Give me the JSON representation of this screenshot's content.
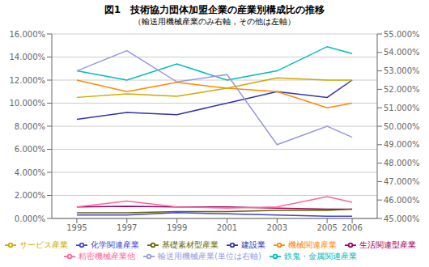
{
  "chart_data": {
    "type": "line",
    "title": "図1　技術協力団体加盟企業の産業別構成比の推移",
    "subtitle": "（輸送用機械産業のみ右軸，その他は左軸）",
    "x": [
      1995,
      1997,
      1999,
      2001,
      2003,
      2005,
      2006
    ],
    "xlim": [
      1994,
      2007
    ],
    "xticks": [
      1995,
      1997,
      1999,
      2001,
      2003,
      2005,
      2006
    ],
    "series": [
      {
        "name": "建設業",
        "color": "#3333AA",
        "values": [
          0.086,
          0.092,
          0.09,
          0.1,
          0.11,
          0.105,
          0.12
        ]
      },
      {
        "name": "生活関連型産業",
        "color": "#990066",
        "values": [
          0.01,
          0.0105,
          0.01,
          0.01,
          0.009,
          0.008,
          0.008
        ]
      },
      {
        "name": "基礎素材型産業",
        "color": "#666600",
        "values": [
          0.005,
          0.005,
          0.006,
          0.006,
          0.007,
          0.007,
          0.008
        ]
      },
      {
        "name": "化学関連産業",
        "color": "#4444CC",
        "values": [
          0.003,
          0.003,
          0.005,
          0.004,
          0.003,
          0.002,
          0.002
        ]
      },
      {
        "name": "鉄鬼・金属関連産業",
        "color": "#00BBBB",
        "values": [
          0.128,
          0.12,
          0.134,
          0.12,
          0.128,
          0.149,
          0.143
        ]
      },
      {
        "name": "機械関連産業",
        "color": "#FF8800",
        "values": [
          0.12,
          0.11,
          0.118,
          0.113,
          0.11,
          0.096,
          0.1
        ]
      },
      {
        "name": "精密機械産業他",
        "color": "#FF6699",
        "values": [
          0.01,
          0.015,
          0.01,
          0.009,
          0.01,
          0.019,
          0.014
        ]
      },
      {
        "name": "サービス産業",
        "color": "#CCAA00",
        "values": [
          0.105,
          0.108,
          0.106,
          0.113,
          0.122,
          0.12,
          0.12
        ]
      },
      {
        "name": "輸送用機械産業(単位は右軸)",
        "color": "#9999DD",
        "values": [
          0.53,
          0.541,
          0.524,
          0.528,
          0.49,
          0.5,
          0.494
        ],
        "axis": "y2"
      }
    ],
    "ylim": [
      0.0,
      0.16
    ],
    "yticks": [
      {
        "value": 0.0,
        "label": "0.000%"
      },
      {
        "value": 0.02,
        "label": "2.000%"
      },
      {
        "value": 0.04,
        "label": "4.000%"
      },
      {
        "value": 0.06,
        "label": "6.000%"
      },
      {
        "value": 0.08,
        "label": "8.000%"
      },
      {
        "value": 0.1,
        "label": "10.000%"
      },
      {
        "value": 0.12,
        "label": "12.000%"
      },
      {
        "value": 0.14,
        "label": "14.000%"
      },
      {
        "value": 0.16,
        "label": "16.000%"
      }
    ],
    "y2lim": [
      0.45,
      0.55
    ],
    "y2ticks": [
      {
        "value": 0.45,
        "label": "45.000%"
      },
      {
        "value": 0.46,
        "label": "46.000%"
      },
      {
        "value": 0.47,
        "label": "47.000%"
      },
      {
        "value": 0.48,
        "label": "48.000%"
      },
      {
        "value": 0.49,
        "label": "49.000%"
      },
      {
        "value": 0.5,
        "label": "50.000%"
      },
      {
        "value": 0.51,
        "label": "51.000%"
      },
      {
        "value": 0.52,
        "label": "52.000%"
      },
      {
        "value": 0.53,
        "label": "53.000%"
      },
      {
        "value": 0.54,
        "label": "54.000%"
      },
      {
        "value": 0.55,
        "label": "55.000%"
      }
    ],
    "grid": true,
    "legend": "bottom"
  }
}
